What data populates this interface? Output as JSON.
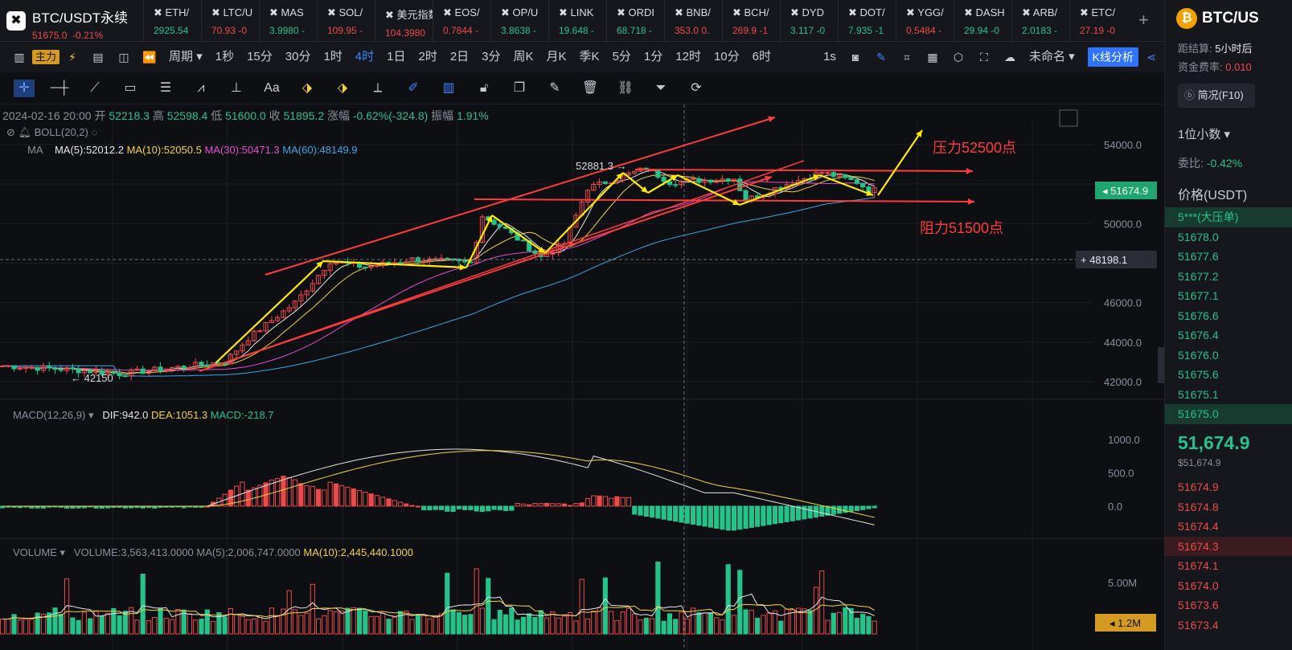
{
  "main_symbol": {
    "name": "BTC/USDT永续",
    "price": "51675.0",
    "change": "-0.21%"
  },
  "tickers": [
    {
      "sym": "ETH/",
      "val": "2925.54",
      "c": "g"
    },
    {
      "sym": "LTC/U",
      "val": "70.93 -0",
      "c": "r"
    },
    {
      "sym": "MAS",
      "val": "3.9980 -",
      "c": "g"
    },
    {
      "sym": "SOL/",
      "val": "109.95 -",
      "c": "r"
    },
    {
      "sym": "美元指数",
      "val": "104.3980",
      "c": "r"
    },
    {
      "sym": "EOS/",
      "val": "0.7844 -",
      "c": "r"
    },
    {
      "sym": "OP/U",
      "val": "3.8638 -",
      "c": "g"
    },
    {
      "sym": "LINK",
      "val": "19.648 -",
      "c": "g"
    },
    {
      "sym": "ORDI",
      "val": "68.718 -",
      "c": "g"
    },
    {
      "sym": "BNB/",
      "val": "353.0 0.",
      "c": "r"
    },
    {
      "sym": "BCH/",
      "val": "269.9 -1",
      "c": "r"
    },
    {
      "sym": "DYD",
      "val": "3.117 -0",
      "c": "g"
    },
    {
      "sym": "DOT/",
      "val": "7.935 -1",
      "c": "g"
    },
    {
      "sym": "YGG/",
      "val": "0.5484 -",
      "c": "r"
    },
    {
      "sym": "DASH",
      "val": "29.94 -0",
      "c": "g"
    },
    {
      "sym": "ARB/",
      "val": "2.0183 -",
      "c": "g"
    },
    {
      "sym": "ETC/",
      "val": "27.19 -0",
      "c": "r"
    }
  ],
  "toolbar": {
    "main_label": "主力",
    "period_label": "周期",
    "periods": [
      "1秒",
      "15分",
      "30分",
      "1时",
      "4时",
      "1日",
      "2时",
      "2日",
      "3分",
      "周K",
      "月K",
      "季K",
      "5分",
      "1分",
      "12时",
      "10分",
      "6时"
    ],
    "active_period": "4时",
    "realtime": "1s",
    "layout_name": "未命名",
    "kline_btn": "K线分析"
  },
  "info_bar": {
    "date": "2024-02-16 20:00",
    "open_label": "开",
    "open": "52218.3",
    "high_label": "高",
    "high": "52598.4",
    "low_label": "低",
    "low": "51600.0",
    "close_label": "收",
    "close": "51895.2",
    "chg_label": "涨幅",
    "chg": "-0.62%(-324.8)",
    "amp_label": "振幅",
    "amp": "1.91%"
  },
  "boll_label": "BOLL(20,2)",
  "ma": {
    "label": "MA",
    "ma5": "MA(5):52012.2",
    "ma10": "MA(10):52050.5",
    "ma30": "MA(30):50471.3",
    "ma60": "MA(60):48149.9"
  },
  "macd": {
    "label": "MACD(12,26,9)",
    "dif": "DIF:942.0",
    "dea": "DEA:1051.3",
    "macd": "MACD:-218.7"
  },
  "volume": {
    "label": "VOLUME",
    "vol": "VOLUME:3,563,413.0000",
    "ma5": "MA(5):2,006,747.0000",
    "ma10": "MA(10):2,445,440.1000"
  },
  "axis": {
    "price_ticks": [
      "54000.0",
      "50000.0",
      "46000.0",
      "44000.0",
      "42000.0"
    ],
    "current_price": "51674.9",
    "crosshair_price": "48198.1",
    "macd_ticks": [
      "1000.0",
      "500.0",
      "0.0"
    ],
    "vol_ticks": [
      "5.00M"
    ],
    "vol_current": "1.2M"
  },
  "annotations": {
    "high": "52881.3",
    "low": "42150",
    "resistance_top": "压力52500点",
    "support": "阻力51500点"
  },
  "colors": {
    "up": "#ec4a4a",
    "down": "#26c289",
    "ma5": "#e6e6e6",
    "ma10": "#f5d23c",
    "ma30": "#e64bd0",
    "ma60": "#3aa7e6",
    "accent": "#2f74ff"
  },
  "right_panel": {
    "symbol": "BTC/US",
    "settle_label": "距结算:",
    "settle_val": "5小时后",
    "fee_label": "资金费率:",
    "fee_val": "0.010",
    "f10": "简况(F10)",
    "decimal": "1位小数",
    "wb_label": "委比:",
    "wb_val": "-0.42%",
    "price_header": "价格(USDT)",
    "asks": [
      "5***(大压单)",
      "51678.0",
      "51677.6",
      "51677.2",
      "51677.1",
      "51676.6",
      "51676.4",
      "51676.0",
      "51675.6",
      "51675.1",
      "51675.0"
    ],
    "last": "51,674.9",
    "last_usd": "$51,674.9",
    "bids": [
      "51674.9",
      "51674.8",
      "51674.4",
      "51674.3",
      "51674.1",
      "51674.0",
      "51673.6",
      "51673.4"
    ]
  }
}
